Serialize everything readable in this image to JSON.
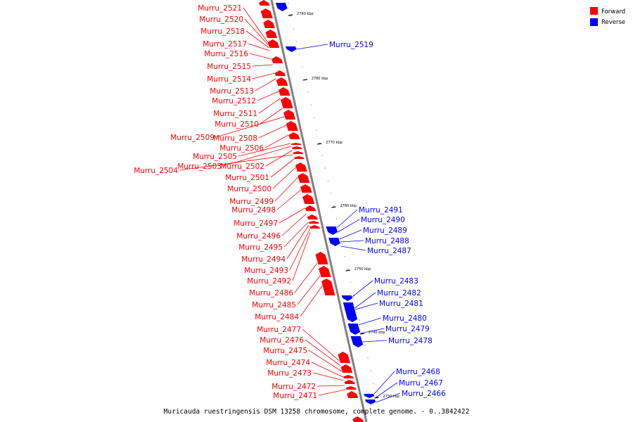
{
  "caption": "Muricauda ruestringensis DSM 13258 chromosome, complete genome. - 0..3842422",
  "legend": [
    {
      "label": "Forward",
      "color": "#ff0000"
    },
    {
      "label": "Reverse",
      "color": "#0000ff"
    }
  ],
  "colors": {
    "forward": "#ff0000",
    "reverse": "#0000ff",
    "axis": "#808080"
  },
  "ticks": [
    "2790 kbp",
    "2780 kbp",
    "2770 kbp",
    "2760 kbp",
    "2750 kbp",
    "2740 kbp",
    "2730 kbp"
  ],
  "forward_genes": [
    "Murru_2521",
    "Murru_2520",
    "Murru_2518",
    "Murru_2517",
    "Murru_2516",
    "Murru_2515",
    "Murru_2514",
    "Murru_2513",
    "Murru_2512",
    "Murru_2511",
    "Murru_2510",
    "Murru_2509",
    "Murru_2508",
    "Murru_2506",
    "Murru_2505",
    "Murru_2503",
    "Murru_2502",
    "Murru_2504",
    "Murru_2501",
    "Murru_2500",
    "Murru_2499",
    "Murru_2498",
    "Murru_2497",
    "Murru_2496",
    "Murru_2495",
    "Murru_2494",
    "Murru_2493",
    "Murru_2492",
    "Murru_2486",
    "Murru_2485",
    "Murru_2484",
    "Murru_2477",
    "Murru_2476",
    "Murru_2475",
    "Murru_2474",
    "Murru_2473",
    "Murru_2472",
    "Murru_2471"
  ],
  "reverse_genes": [
    "Murru_2519",
    "Murru_2491",
    "Murru_2490",
    "Murru_2489",
    "Murru_2488",
    "Murru_2487",
    "Murru_2483",
    "Murru_2482",
    "Murru_2481",
    "Murru_2480",
    "Murru_2479",
    "Murru_2478",
    "Murru_2468",
    "Murru_2467",
    "Murru_2466"
  ]
}
